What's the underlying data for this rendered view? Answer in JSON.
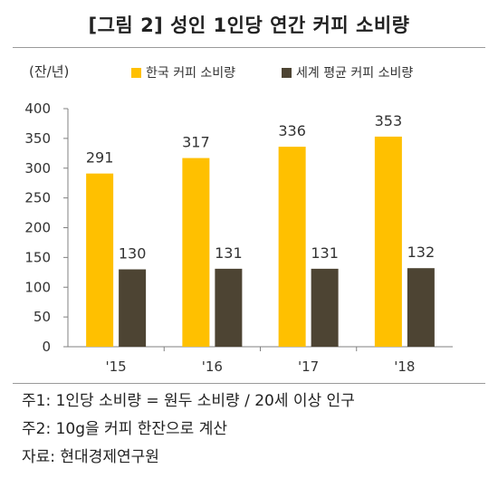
{
  "title": "[그림 2] 성인 1인당 연간 커피 소비량",
  "colors": {
    "korea": "#FFC000",
    "world": "#4D4433",
    "axis": "#808080"
  },
  "chart_data": {
    "type": "bar",
    "unit_label": "(잔/년)",
    "categories": [
      "'15",
      "'16",
      "'17",
      "'18"
    ],
    "series": [
      {
        "name": "한국 커피 소비량",
        "values": [
          291,
          317,
          336,
          353
        ]
      },
      {
        "name": "세계 평균 커피 소비량",
        "values": [
          130,
          131,
          131,
          132
        ]
      }
    ],
    "ylim": [
      0,
      400
    ],
    "yticks": [
      0,
      50,
      100,
      150,
      200,
      250,
      300,
      350,
      400
    ],
    "grid": false,
    "legend": "top"
  },
  "notes": [
    "주1: 1인당 소비량 = 원두 소비량 / 20세 이상 인구",
    "주2: 10g을 커피 한잔으로 계산",
    "자료: 현대경제연구원"
  ]
}
